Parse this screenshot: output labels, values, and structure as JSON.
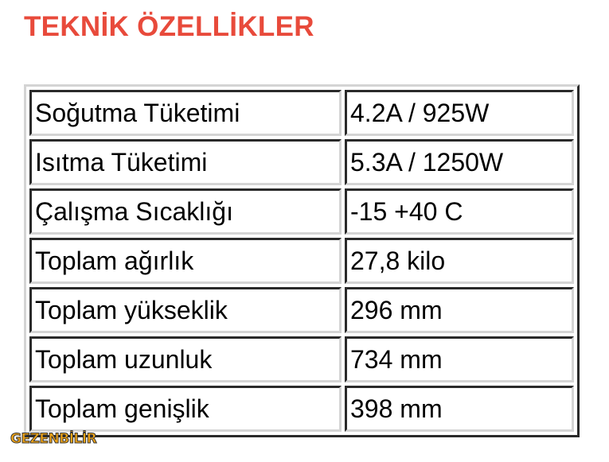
{
  "title": "TEKNİK ÖZELLİKLER",
  "specs": [
    {
      "label": "Soğutma Tüketimi",
      "value": "4.2A / 925W"
    },
    {
      "label": "Isıtma Tüketimi",
      "value": "5.3A / 1250W"
    },
    {
      "label": "Çalışma Sıcaklığı",
      "value": "-15 +40 C"
    },
    {
      "label": "Toplam ağırlık",
      "value": "27,8 kilo"
    },
    {
      "label": "Toplam yükseklik",
      "value": "296 mm"
    },
    {
      "label": "Toplam uzunluk",
      "value": "734 mm"
    },
    {
      "label": "Toplam genişlik",
      "value": "398 mm"
    }
  ],
  "logo": {
    "text": "GEZENBİLİR"
  },
  "colors": {
    "title": "#e84a3b",
    "logo": "#f2a516"
  }
}
